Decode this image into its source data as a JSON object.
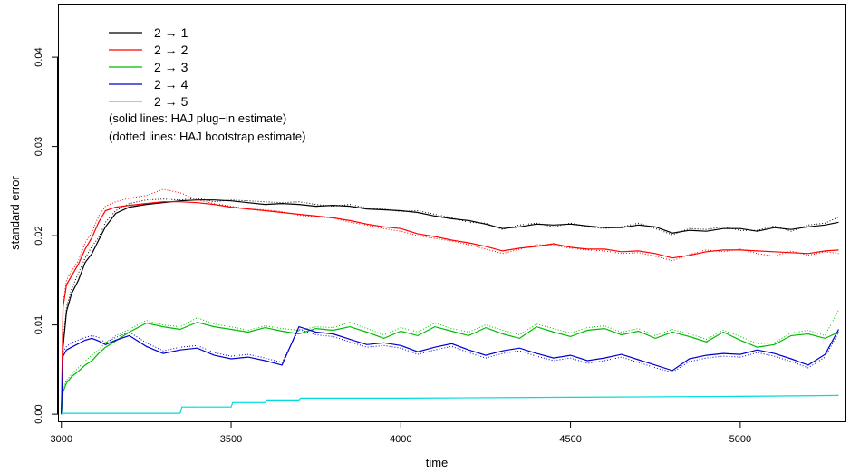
{
  "chart_data": {
    "type": "line",
    "xlabel": "time",
    "ylabel": "standard error",
    "xlim": [
      2990,
      5310
    ],
    "ylim": [
      -0.0008,
      0.046
    ],
    "x_ticks": [
      3000,
      3500,
      4000,
      4500,
      5000
    ],
    "x_tick_labels": [
      "3000",
      "3500",
      "4000",
      "4500",
      "5000"
    ],
    "y_ticks": [
      0.0,
      0.01,
      0.02,
      0.03,
      0.04
    ],
    "y_tick_labels": [
      "0.00",
      "0.01",
      "0.02",
      "0.03",
      "0.04"
    ],
    "legend_position": "top-left",
    "notes": [
      "(solid lines: HAJ plug−in estimate)",
      "(dotted lines: HAJ bootstrap estimate)"
    ],
    "series": [
      {
        "name": "2 → 1",
        "color": "#000000",
        "x": [
          3000,
          3005,
          3015,
          3030,
          3050,
          3070,
          3090,
          3110,
          3130,
          3160,
          3200,
          3250,
          3300,
          3350,
          3400,
          3450,
          3500,
          3550,
          3600,
          3650,
          3700,
          3750,
          3800,
          3850,
          3900,
          3950,
          4000,
          4050,
          4100,
          4150,
          4200,
          4250,
          4300,
          4350,
          4400,
          4450,
          4500,
          4550,
          4600,
          4650,
          4700,
          4750,
          4800,
          4850,
          4900,
          4950,
          5000,
          5050,
          5100,
          5150,
          5200,
          5250,
          5290
        ],
        "y": [
          0.0,
          0.0075,
          0.0115,
          0.0135,
          0.015,
          0.017,
          0.018,
          0.0195,
          0.021,
          0.0225,
          0.0232,
          0.0235,
          0.0237,
          0.0239,
          0.024,
          0.024,
          0.0239,
          0.0237,
          0.0235,
          0.0236,
          0.0235,
          0.0233,
          0.0234,
          0.0233,
          0.023,
          0.0229,
          0.0228,
          0.0226,
          0.0222,
          0.0219,
          0.0217,
          0.0213,
          0.0208,
          0.021,
          0.0213,
          0.0212,
          0.0213,
          0.0211,
          0.0209,
          0.0209,
          0.0212,
          0.021,
          0.0203,
          0.0206,
          0.0205,
          0.0208,
          0.0208,
          0.0205,
          0.0209,
          0.0207,
          0.021,
          0.0212,
          0.0215
        ],
        "bootstrap_y": [
          0.0,
          0.008,
          0.012,
          0.014,
          0.0158,
          0.0175,
          0.0188,
          0.0198,
          0.0215,
          0.0228,
          0.0236,
          0.024,
          0.0241,
          0.024,
          0.0242,
          0.0238,
          0.024,
          0.0239,
          0.0238,
          0.0237,
          0.0238,
          0.0235,
          0.0233,
          0.0235,
          0.0231,
          0.023,
          0.0227,
          0.0228,
          0.0224,
          0.022,
          0.0215,
          0.0214,
          0.0207,
          0.0212,
          0.0214,
          0.021,
          0.0214,
          0.021,
          0.0208,
          0.021,
          0.0214,
          0.0208,
          0.0201,
          0.0208,
          0.0207,
          0.021,
          0.0206,
          0.0206,
          0.0211,
          0.0205,
          0.0212,
          0.0214,
          0.0221
        ]
      },
      {
        "name": "2 → 2",
        "color": "#ff0000",
        "x": [
          3000,
          3005,
          3015,
          3030,
          3050,
          3070,
          3090,
          3110,
          3130,
          3160,
          3200,
          3250,
          3300,
          3350,
          3400,
          3450,
          3500,
          3550,
          3600,
          3650,
          3700,
          3750,
          3800,
          3850,
          3900,
          3950,
          4000,
          4050,
          4100,
          4150,
          4200,
          4250,
          4300,
          4350,
          4400,
          4450,
          4500,
          4550,
          4600,
          4650,
          4700,
          4750,
          4800,
          4850,
          4900,
          4950,
          5000,
          5050,
          5100,
          5150,
          5200,
          5250,
          5290
        ],
        "y": [
          0.0,
          0.012,
          0.0145,
          0.0155,
          0.0168,
          0.0185,
          0.0198,
          0.0215,
          0.0228,
          0.0232,
          0.0234,
          0.0236,
          0.0238,
          0.0238,
          0.0237,
          0.0235,
          0.0232,
          0.023,
          0.0228,
          0.0226,
          0.0224,
          0.0222,
          0.022,
          0.0217,
          0.0213,
          0.021,
          0.0208,
          0.0202,
          0.0199,
          0.0195,
          0.0192,
          0.0188,
          0.0183,
          0.0186,
          0.0188,
          0.0191,
          0.0187,
          0.0185,
          0.0185,
          0.0182,
          0.0183,
          0.018,
          0.0175,
          0.0178,
          0.0182,
          0.0184,
          0.0184,
          0.0183,
          0.0182,
          0.0181,
          0.018,
          0.0183,
          0.0184
        ],
        "bootstrap_y": [
          0.0,
          0.0125,
          0.015,
          0.016,
          0.0172,
          0.0192,
          0.0204,
          0.0222,
          0.0233,
          0.0238,
          0.0242,
          0.0245,
          0.0252,
          0.0248,
          0.024,
          0.0236,
          0.0233,
          0.023,
          0.0229,
          0.0227,
          0.0223,
          0.0221,
          0.022,
          0.0215,
          0.0212,
          0.0208,
          0.0205,
          0.02,
          0.0197,
          0.0194,
          0.019,
          0.0185,
          0.018,
          0.0185,
          0.019,
          0.0189,
          0.0186,
          0.0184,
          0.0183,
          0.018,
          0.0181,
          0.0177,
          0.0172,
          0.0179,
          0.0184,
          0.0182,
          0.0185,
          0.018,
          0.0177,
          0.0183,
          0.0178,
          0.0182,
          0.018
        ]
      },
      {
        "name": "2 → 3",
        "color": "#00bb00",
        "x": [
          3000,
          3005,
          3015,
          3030,
          3050,
          3070,
          3090,
          3110,
          3130,
          3160,
          3200,
          3250,
          3300,
          3350,
          3400,
          3450,
          3500,
          3550,
          3600,
          3650,
          3700,
          3750,
          3800,
          3850,
          3900,
          3950,
          4000,
          4050,
          4100,
          4150,
          4200,
          4250,
          4300,
          4350,
          4400,
          4450,
          4500,
          4550,
          4600,
          4650,
          4700,
          4750,
          4800,
          4850,
          4900,
          4950,
          5000,
          5050,
          5100,
          5150,
          5200,
          5250,
          5290
        ],
        "y": [
          0.0,
          0.0025,
          0.0035,
          0.0042,
          0.0048,
          0.0055,
          0.006,
          0.0068,
          0.0075,
          0.0082,
          0.0092,
          0.0102,
          0.0098,
          0.0095,
          0.0103,
          0.0098,
          0.0095,
          0.0092,
          0.0097,
          0.0093,
          0.009,
          0.0096,
          0.0094,
          0.0098,
          0.0092,
          0.0085,
          0.0093,
          0.0088,
          0.0098,
          0.0093,
          0.0088,
          0.0097,
          0.009,
          0.0085,
          0.0098,
          0.0092,
          0.0087,
          0.0094,
          0.0096,
          0.0089,
          0.0093,
          0.0085,
          0.0092,
          0.0087,
          0.0081,
          0.0092,
          0.0083,
          0.0075,
          0.0078,
          0.0088,
          0.009,
          0.0085,
          0.0092
        ],
        "bootstrap_y": [
          0.0,
          0.003,
          0.0038,
          0.0045,
          0.0052,
          0.006,
          0.0066,
          0.0072,
          0.008,
          0.0088,
          0.0095,
          0.0105,
          0.01,
          0.0098,
          0.0108,
          0.0101,
          0.0098,
          0.0094,
          0.0099,
          0.0096,
          0.0094,
          0.0098,
          0.0097,
          0.0103,
          0.0096,
          0.0089,
          0.0097,
          0.0092,
          0.0102,
          0.0096,
          0.0092,
          0.01,
          0.0094,
          0.0089,
          0.0101,
          0.0096,
          0.0091,
          0.0097,
          0.0099,
          0.0092,
          0.0096,
          0.0088,
          0.0095,
          0.009,
          0.0084,
          0.0094,
          0.0087,
          0.0079,
          0.008,
          0.0091,
          0.0094,
          0.0088,
          0.0117
        ]
      },
      {
        "name": "2 → 4",
        "color": "#0000cc",
        "x": [
          3000,
          3005,
          3015,
          3030,
          3050,
          3070,
          3090,
          3110,
          3130,
          3160,
          3200,
          3250,
          3300,
          3350,
          3400,
          3450,
          3500,
          3550,
          3600,
          3650,
          3700,
          3750,
          3800,
          3850,
          3900,
          3950,
          4000,
          4050,
          4100,
          4150,
          4200,
          4250,
          4300,
          4350,
          4400,
          4450,
          4500,
          4550,
          4600,
          4650,
          4700,
          4750,
          4800,
          4850,
          4900,
          4950,
          5000,
          5050,
          5100,
          5150,
          5200,
          5250,
          5290
        ],
        "y": [
          0.0,
          0.0065,
          0.0072,
          0.0075,
          0.0079,
          0.0083,
          0.0085,
          0.0082,
          0.0078,
          0.0083,
          0.0088,
          0.0076,
          0.0068,
          0.0072,
          0.0074,
          0.0066,
          0.0062,
          0.0064,
          0.006,
          0.0055,
          0.0098,
          0.0092,
          0.009,
          0.0084,
          0.0078,
          0.008,
          0.0077,
          0.007,
          0.0075,
          0.0079,
          0.0072,
          0.0066,
          0.0071,
          0.0074,
          0.0068,
          0.0063,
          0.0066,
          0.006,
          0.0063,
          0.0067,
          0.0061,
          0.0055,
          0.0049,
          0.0062,
          0.0066,
          0.0068,
          0.0067,
          0.0072,
          0.0068,
          0.0062,
          0.0055,
          0.0067,
          0.0095
        ],
        "bootstrap_y": [
          0.0,
          0.007,
          0.0076,
          0.008,
          0.0083,
          0.0086,
          0.0088,
          0.0086,
          0.008,
          0.0086,
          0.0092,
          0.008,
          0.0071,
          0.0075,
          0.0077,
          0.0069,
          0.0065,
          0.0067,
          0.0063,
          0.0058,
          0.0095,
          0.0089,
          0.0087,
          0.0081,
          0.0075,
          0.0077,
          0.0074,
          0.0067,
          0.0072,
          0.0076,
          0.0069,
          0.0063,
          0.0068,
          0.0071,
          0.0065,
          0.006,
          0.0063,
          0.0057,
          0.006,
          0.0064,
          0.0058,
          0.0052,
          0.0047,
          0.0059,
          0.0063,
          0.0065,
          0.0064,
          0.0069,
          0.0065,
          0.0059,
          0.0052,
          0.0064,
          0.0092
        ]
      },
      {
        "name": "2 → 5",
        "color": "#00dddd",
        "x": [
          3000,
          3005,
          3350,
          3355,
          3500,
          3505,
          3600,
          3605,
          3700,
          3705,
          4000,
          4500,
          5000,
          5290
        ],
        "y": [
          0.0,
          0.0001,
          0.0001,
          0.0008,
          0.0008,
          0.0013,
          0.0013,
          0.0016,
          0.0016,
          0.0018,
          0.0018,
          0.0019,
          0.002,
          0.0021
        ],
        "bootstrap_y": [
          0.0,
          0.0001,
          0.0001,
          0.0008,
          0.0008,
          0.0013,
          0.0013,
          0.0016,
          0.0016,
          0.0018,
          0.0018,
          0.0019,
          0.002,
          0.0021
        ]
      }
    ]
  }
}
